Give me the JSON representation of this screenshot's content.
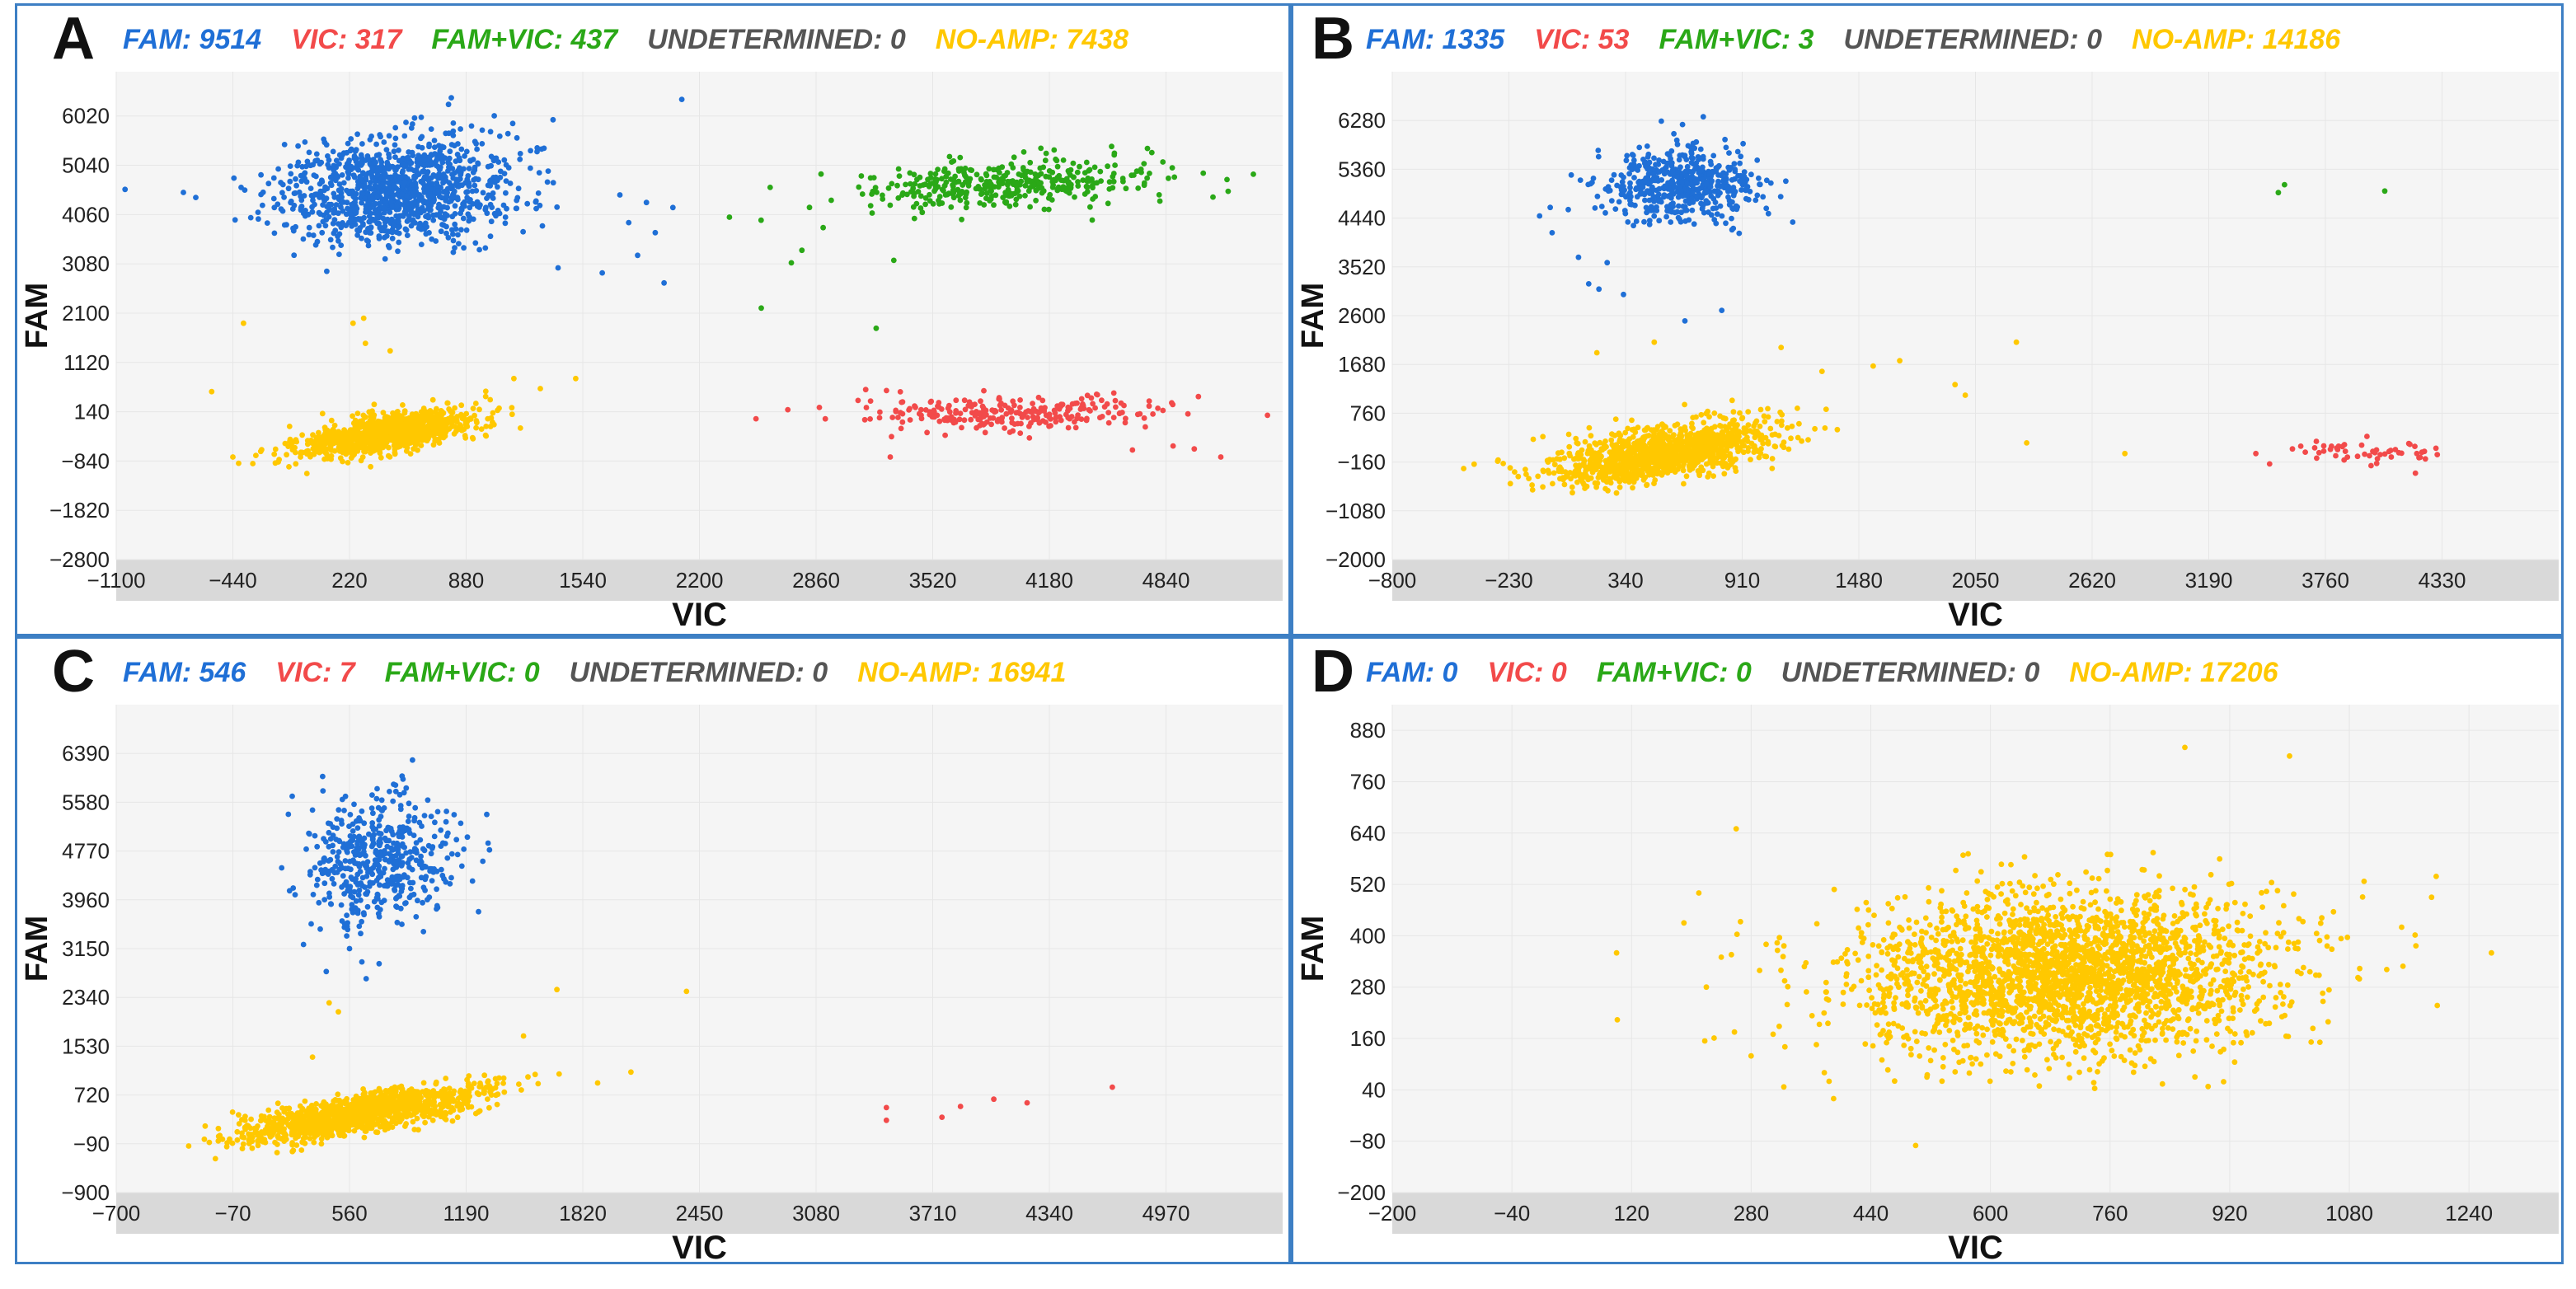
{
  "colors": {
    "fam": "#1f6fd6",
    "vic": "#f24a4a",
    "famvic": "#2aa817",
    "undet": "#555555",
    "noamp": "#ffc800",
    "plot_bg": "#f5f5f5",
    "axis_band": "#d9d9d9",
    "grid": "#e6e6e6",
    "border": "#3d7fc4"
  },
  "chart_data": [
    {
      "panel": "A",
      "type": "scatter",
      "header": [
        {
          "key": "fam",
          "label": "FAM: 9514"
        },
        {
          "key": "vic",
          "label": "VIC: 317"
        },
        {
          "key": "famvic",
          "label": "FAM+VIC: 437"
        },
        {
          "key": "undet",
          "label": "UNDETERMINED: 0"
        },
        {
          "key": "noamp",
          "label": "NO-AMP: 7438"
        }
      ],
      "xlabel": "VIC",
      "ylabel": "FAM",
      "xlim": [
        -1100,
        5500
      ],
      "ylim": [
        -2800,
        6900
      ],
      "xticks": [
        -1100,
        -440,
        220,
        880,
        1540,
        2200,
        2860,
        3520,
        4180,
        4840
      ],
      "yticks": [
        -2800,
        -1820,
        -840,
        140,
        1120,
        2100,
        3080,
        4060,
        5040,
        6020
      ],
      "clusters": [
        {
          "key": "fam",
          "count": 1100,
          "cx": 480,
          "cy": 4550,
          "sx": 330,
          "sy": 520,
          "rho": 0.1,
          "outliers": [
            [
              -1050,
              4560
            ],
            [
              -720,
              4500
            ],
            [
              -650,
              4400
            ],
            [
              1800,
              3900
            ],
            [
              2050,
              4200
            ],
            [
              1950,
              3700
            ],
            [
              1650,
              2900
            ],
            [
              2000,
              2700
            ],
            [
              1900,
              4300
            ],
            [
              1400,
              3000
            ],
            [
              1750,
              4450
            ],
            [
              2100,
              6350
            ],
            [
              780,
              6250
            ],
            [
              1850,
              3250
            ]
          ]
        },
        {
          "key": "famvic",
          "count": 380,
          "cx": 3950,
          "cy": 4650,
          "sx": 420,
          "sy": 260,
          "rho": 0.35,
          "outliers": [
            [
              2550,
              2200
            ],
            [
              2720,
              3100
            ],
            [
              2780,
              3350
            ],
            [
              2900,
              3800
            ],
            [
              2600,
              4600
            ],
            [
              3300,
              3150
            ],
            [
              3200,
              1800
            ],
            [
              4700,
              4900
            ]
          ]
        },
        {
          "key": "vic",
          "count": 260,
          "cx": 3950,
          "cy": 100,
          "sx": 420,
          "sy": 170,
          "rho": 0.1,
          "outliers": [
            [
              2520,
              0
            ],
            [
              2700,
              180
            ],
            [
              3280,
              -760
            ],
            [
              4650,
              -620
            ],
            [
              5000,
              -600
            ],
            [
              5150,
              -760
            ],
            [
              4880,
              -540
            ]
          ]
        },
        {
          "key": "noamp",
          "count": 1000,
          "cx": 420,
          "cy": -300,
          "sx": 240,
          "sy": 230,
          "rho": 0.6,
          "outliers": [
            [
              300,
              2000
            ],
            [
              240,
              1900
            ],
            [
              -380,
              1900
            ],
            [
              -560,
              540
            ],
            [
              -440,
              -760
            ],
            [
              -200,
              -880
            ],
            [
              1150,
              800
            ],
            [
              1300,
              600
            ],
            [
              310,
              1500
            ],
            [
              450,
              1350
            ],
            [
              1500,
              800
            ]
          ]
        }
      ]
    },
    {
      "panel": "B",
      "type": "scatter",
      "header": [
        {
          "key": "fam",
          "label": "FAM: 1335"
        },
        {
          "key": "vic",
          "label": "VIC: 53"
        },
        {
          "key": "famvic",
          "label": "FAM+VIC: 3"
        },
        {
          "key": "undet",
          "label": "UNDETERMINED: 0"
        },
        {
          "key": "noamp",
          "label": "NO-AMP: 14186"
        }
      ],
      "xlabel": "VIC",
      "ylabel": "FAM",
      "xlim": [
        -800,
        4900
      ],
      "ylim": [
        -2000,
        7200
      ],
      "xticks": [
        -800,
        -230,
        340,
        910,
        1480,
        2050,
        2620,
        3190,
        3760,
        4330
      ],
      "yticks": [
        -2000,
        -1080,
        -160,
        760,
        1680,
        2600,
        3520,
        4440,
        5360,
        6280
      ],
      "clusters": [
        {
          "key": "fam",
          "count": 520,
          "cx": 600,
          "cy": 5050,
          "sx": 190,
          "sy": 330,
          "rho": 0.0,
          "outliers": [
            [
              -80,
              4480
            ],
            [
              60,
              4600
            ],
            [
              110,
              3700
            ],
            [
              160,
              3200
            ],
            [
              210,
              3100
            ],
            [
              330,
              3000
            ],
            [
              630,
              2500
            ],
            [
              810,
              2700
            ],
            [
              1050,
              5100
            ],
            [
              720,
              6350
            ],
            [
              250,
              3600
            ]
          ]
        },
        {
          "key": "famvic",
          "count": 0,
          "cx": 3700,
          "cy": 5000,
          "sx": 1,
          "sy": 1,
          "rho": 0,
          "outliers": [
            [
              3530,
              4920
            ],
            [
              3560,
              5070
            ],
            [
              4050,
              4950
            ]
          ]
        },
        {
          "key": "vic",
          "count": 50,
          "cx": 3950,
          "cy": 50,
          "sx": 220,
          "sy": 120,
          "rho": 0.1,
          "outliers": [
            [
              3420,
              0
            ],
            [
              4300,
              100
            ],
            [
              4200,
              -370
            ]
          ]
        },
        {
          "key": "noamp",
          "count": 1100,
          "cx": 520,
          "cy": 0,
          "sx": 280,
          "sy": 300,
          "rho": 0.55,
          "outliers": [
            [
              1680,
              1750
            ],
            [
              2250,
              2100
            ],
            [
              1550,
              1650
            ],
            [
              1950,
              1300
            ],
            [
              2000,
              1100
            ],
            [
              2300,
              200
            ],
            [
              1300,
              1550
            ],
            [
              1100,
              2000
            ],
            [
              480,
              2100
            ],
            [
              200,
              1900
            ],
            [
              -150,
              -300
            ],
            [
              -400,
              -200
            ],
            [
              2780,
              0
            ]
          ]
        }
      ]
    },
    {
      "panel": "C",
      "type": "scatter",
      "header": [
        {
          "key": "fam",
          "label": "FAM: 546"
        },
        {
          "key": "vic",
          "label": "VIC: 7"
        },
        {
          "key": "famvic",
          "label": "FAM+VIC: 0"
        },
        {
          "key": "undet",
          "label": "UNDETERMINED: 0"
        },
        {
          "key": "noamp",
          "label": "NO-AMP: 16941"
        }
      ],
      "xlabel": "VIC",
      "ylabel": "FAM",
      "xlim": [
        -700,
        5600
      ],
      "ylim": [
        -900,
        7200
      ],
      "xticks": [
        -700,
        -70,
        560,
        1190,
        1820,
        2450,
        3080,
        3710,
        4340,
        4970
      ],
      "yticks": [
        -900,
        -90,
        720,
        1530,
        2340,
        3150,
        3960,
        4770,
        5580,
        6390
      ],
      "clusters": [
        {
          "key": "fam",
          "count": 480,
          "cx": 720,
          "cy": 4650,
          "sx": 190,
          "sy": 520,
          "rho": 0.1,
          "outliers": [
            [
              560,
              3150
            ],
            [
              620,
              3400
            ],
            [
              650,
              2650
            ],
            [
              720,
              2900
            ],
            [
              1280,
              4600
            ],
            [
              900,
              6280
            ],
            [
              360,
              5450
            ]
          ]
        },
        {
          "key": "vic",
          "count": 0,
          "cx": 3900,
          "cy": 500,
          "sx": 1,
          "sy": 1,
          "rho": 0,
          "outliers": [
            [
              3460,
              510
            ],
            [
              3460,
              300
            ],
            [
              3760,
              350
            ],
            [
              3860,
              530
            ],
            [
              4040,
              650
            ],
            [
              4220,
              590
            ],
            [
              4680,
              850
            ]
          ]
        },
        {
          "key": "noamp",
          "count": 1300,
          "cx": 640,
          "cy": 420,
          "sx": 320,
          "sy": 220,
          "rho": 0.75,
          "outliers": [
            [
              1680,
              2470
            ],
            [
              2380,
              2440
            ],
            [
              2080,
              1100
            ],
            [
              1900,
              920
            ],
            [
              450,
              2250
            ],
            [
              500,
              2100
            ],
            [
              1500,
              1700
            ],
            [
              360,
              1350
            ]
          ]
        }
      ]
    },
    {
      "panel": "D",
      "type": "scatter",
      "header": [
        {
          "key": "fam",
          "label": "FAM: 0"
        },
        {
          "key": "vic",
          "label": "VIC: 0"
        },
        {
          "key": "famvic",
          "label": "FAM+VIC: 0"
        },
        {
          "key": "undet",
          "label": "UNDETERMINED: 0"
        },
        {
          "key": "noamp",
          "label": "NO-AMP: 17206"
        }
      ],
      "xlabel": "VIC",
      "ylabel": "FAM",
      "xlim": [
        -200,
        1360
      ],
      "ylim": [
        -200,
        940
      ],
      "xticks": [
        -200,
        -40,
        120,
        280,
        440,
        600,
        760,
        920,
        1080,
        1240
      ],
      "yticks": [
        -200,
        -80,
        40,
        160,
        280,
        400,
        520,
        640,
        760,
        880
      ],
      "clusters": [
        {
          "key": "noamp",
          "count": 2600,
          "cx": 700,
          "cy": 310,
          "sx": 140,
          "sy": 95,
          "rho": 0.1,
          "outliers": [
            [
              100,
              360
            ],
            [
              190,
              430
            ],
            [
              210,
              500
            ],
            [
              220,
              280
            ],
            [
              260,
              650
            ],
            [
              240,
              350
            ],
            [
              300,
              380
            ],
            [
              1270,
              360
            ],
            [
              1150,
              420
            ],
            [
              1190,
              490
            ],
            [
              500,
              -90
            ],
            [
              860,
              840
            ],
            [
              1000,
              820
            ]
          ]
        }
      ]
    }
  ]
}
